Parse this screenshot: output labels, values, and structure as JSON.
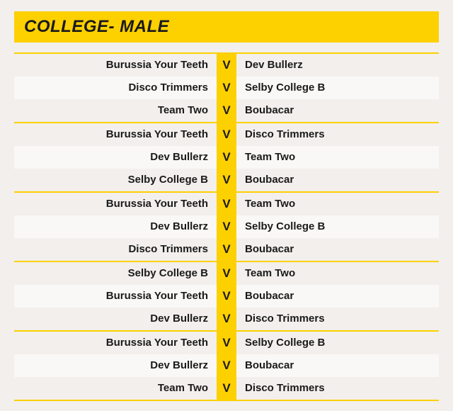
{
  "title": "COLLEGE- MALE",
  "vs_label": "V",
  "colors": {
    "accent": "#fdd000",
    "background": "#f2efec",
    "row_alt": "#faf8f6",
    "text": "#1a1a1a"
  },
  "groups": [
    {
      "matches": [
        {
          "home": "Burussia Your Teeth",
          "away": "Dev Bullerz"
        },
        {
          "home": "Disco Trimmers",
          "away": "Selby College B"
        },
        {
          "home": "Team Two",
          "away": "Boubacar"
        }
      ]
    },
    {
      "matches": [
        {
          "home": "Burussia Your Teeth",
          "away": "Disco Trimmers"
        },
        {
          "home": "Dev Bullerz",
          "away": "Team Two"
        },
        {
          "home": "Selby College B",
          "away": "Boubacar"
        }
      ]
    },
    {
      "matches": [
        {
          "home": "Burussia Your Teeth",
          "away": "Team Two"
        },
        {
          "home": "Dev Bullerz",
          "away": "Selby College B"
        },
        {
          "home": "Disco Trimmers",
          "away": "Boubacar"
        }
      ]
    },
    {
      "matches": [
        {
          "home": "Selby College B",
          "away": "Team Two"
        },
        {
          "home": "Burussia Your Teeth",
          "away": "Boubacar"
        },
        {
          "home": "Dev Bullerz",
          "away": "Disco Trimmers"
        }
      ]
    },
    {
      "matches": [
        {
          "home": "Burussia Your Teeth",
          "away": "Selby College B"
        },
        {
          "home": "Dev Bullerz",
          "away": "Boubacar"
        },
        {
          "home": "Team Two",
          "away": "Disco Trimmers"
        }
      ]
    }
  ]
}
